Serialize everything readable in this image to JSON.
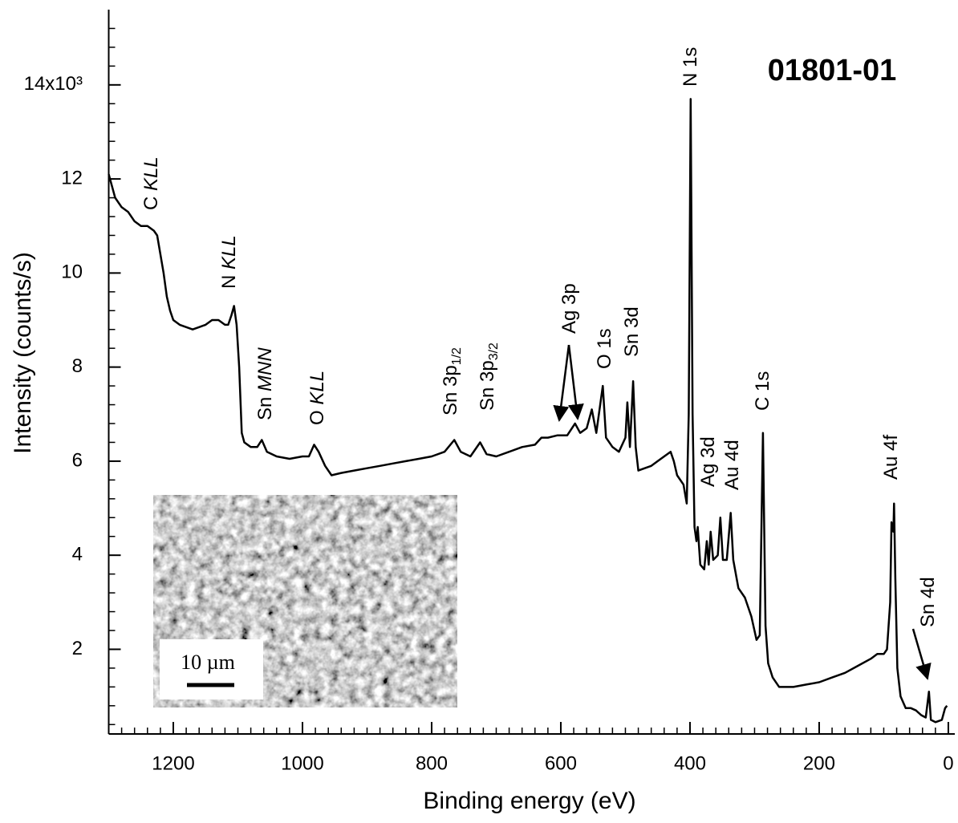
{
  "chart_data": {
    "type": "line",
    "sample": "01801-01",
    "xlabel": "Binding energy (eV)",
    "ylabel": "Intensity (counts/s)",
    "xlim": [
      1300,
      -10
    ],
    "ylim": [
      0.2,
      15.6
    ],
    "xticks": [
      1200,
      1000,
      800,
      600,
      400,
      200,
      0
    ],
    "yticks": [
      2,
      4,
      6,
      8,
      10,
      12,
      {
        "value": 14,
        "label": "14x10³"
      }
    ],
    "minor_tick_step": {
      "x": 20,
      "y": 0.4
    },
    "inset_scale": "10 µm",
    "annotations": [
      {
        "text": "C ",
        "italic": "KLL"
      },
      {
        "text": "N ",
        "italic": "KLL"
      },
      {
        "text": "Sn ",
        "italic": "MNN"
      },
      {
        "text": "O ",
        "italic": "KLL"
      },
      {
        "text": "Sn 3p",
        "sub": "1/2"
      },
      {
        "text": "Sn 3p",
        "sub": "3/2"
      },
      {
        "text": "Ag 3p"
      },
      {
        "text": "O 1s"
      },
      {
        "text": "Sn 3d"
      },
      {
        "text": "N 1s"
      },
      {
        "text": "Ag 3d"
      },
      {
        "text": "Au 4d"
      },
      {
        "text": "C 1s"
      },
      {
        "text": "Au 4f"
      },
      {
        "text": "Sn 4d"
      }
    ],
    "x": [
      1300,
      1290,
      1280,
      1270,
      1260,
      1250,
      1240,
      1230,
      1225,
      1220,
      1215,
      1210,
      1205,
      1200,
      1190,
      1180,
      1170,
      1160,
      1150,
      1140,
      1130,
      1120,
      1115,
      1110,
      1106,
      1102,
      1098,
      1094,
      1090,
      1080,
      1070,
      1063,
      1055,
      1040,
      1020,
      1000,
      990,
      982,
      975,
      965,
      955,
      940,
      920,
      900,
      880,
      860,
      840,
      820,
      800,
      780,
      765,
      755,
      740,
      725,
      715,
      700,
      680,
      660,
      640,
      630,
      620,
      605,
      590,
      578,
      570,
      560,
      552,
      545,
      535,
      530,
      520,
      510,
      500,
      497,
      493,
      488,
      484,
      480,
      470,
      460,
      450,
      440,
      430,
      425,
      420,
      410,
      405,
      402,
      399,
      396,
      393,
      390,
      388,
      384,
      378,
      374,
      371,
      368,
      364,
      357,
      353,
      349,
      343,
      337,
      333,
      325,
      315,
      305,
      297,
      292,
      287,
      283,
      279,
      272,
      262,
      240,
      220,
      200,
      180,
      160,
      140,
      120,
      110,
      100,
      95,
      90,
      88,
      85,
      84,
      82,
      79,
      74,
      66,
      58,
      50,
      42,
      35,
      30,
      27,
      20,
      10,
      5,
      2
    ],
    "series": [
      {
        "color": "#000000",
        "values": [
          12.1,
          11.6,
          11.4,
          11.3,
          11.1,
          11.0,
          11.0,
          10.9,
          10.8,
          10.4,
          10.0,
          9.5,
          9.2,
          9.0,
          8.9,
          8.85,
          8.8,
          8.85,
          8.9,
          9.0,
          9.0,
          8.9,
          8.9,
          9.1,
          9.3,
          8.9,
          8.0,
          6.6,
          6.4,
          6.3,
          6.3,
          6.45,
          6.2,
          6.1,
          6.05,
          6.1,
          6.1,
          6.35,
          6.2,
          5.9,
          5.7,
          5.75,
          5.8,
          5.85,
          5.9,
          5.95,
          6.0,
          6.05,
          6.1,
          6.2,
          6.45,
          6.2,
          6.1,
          6.4,
          6.15,
          6.1,
          6.2,
          6.3,
          6.35,
          6.5,
          6.5,
          6.55,
          6.55,
          6.8,
          6.6,
          6.7,
          7.1,
          6.6,
          7.6,
          6.5,
          6.3,
          6.2,
          6.5,
          7.25,
          6.3,
          7.7,
          6.3,
          5.8,
          5.85,
          5.9,
          6.0,
          6.1,
          6.2,
          6.0,
          5.7,
          5.5,
          5.1,
          7.0,
          13.7,
          7.0,
          4.6,
          4.3,
          4.6,
          3.8,
          3.7,
          4.3,
          3.8,
          4.5,
          3.9,
          4.0,
          4.8,
          3.9,
          3.9,
          4.9,
          3.9,
          3.3,
          3.1,
          2.7,
          2.2,
          2.3,
          6.6,
          2.5,
          1.7,
          1.4,
          1.2,
          1.2,
          1.25,
          1.3,
          1.4,
          1.5,
          1.65,
          1.8,
          1.9,
          1.9,
          2.0,
          3.0,
          4.7,
          4.5,
          5.1,
          3.5,
          1.6,
          1.0,
          0.75,
          0.75,
          0.7,
          0.6,
          0.55,
          1.1,
          0.5,
          0.45,
          0.5,
          0.75,
          0.8
        ]
      }
    ]
  }
}
